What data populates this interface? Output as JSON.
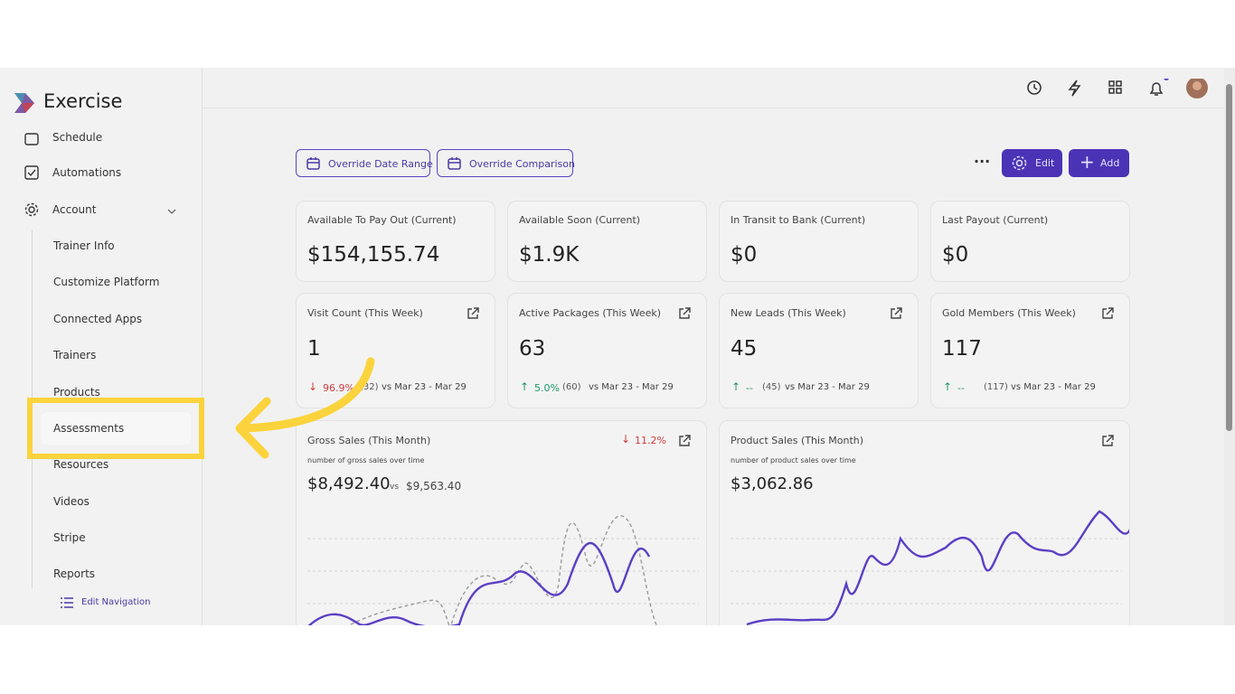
{
  "brand": "Exercise",
  "sidebar": {
    "items": [
      "Schedule",
      "Automations",
      "Account",
      "Trainer Info",
      "Customize Platform",
      "Connected Apps",
      "Trainers",
      "Products",
      "Assessments",
      "Resources",
      "Videos",
      "Stripe",
      "Reports"
    ],
    "edit_navigation": "Edit Navigation"
  },
  "toolbar": {
    "override_date_range": "Override Date Range",
    "override_comparison": "Override Comparison",
    "edit": "Edit",
    "add": "Add"
  },
  "stat_cards": [
    {
      "label": "Available To Pay Out (Current)",
      "value": "$154,155.74"
    },
    {
      "label": "Available Soon (Current)",
      "value": "$1.9K"
    },
    {
      "label": "In Transit to Bank (Current)",
      "value": "$0"
    },
    {
      "label": "Last Payout (Current)",
      "value": "$0"
    }
  ],
  "metric_cards": [
    {
      "label": "Visit Count (This Week)",
      "value": "1",
      "change": "96.9%",
      "previous": "(32)",
      "range": "vs Mar 23 - Mar 29"
    },
    {
      "label": "Active Packages (This Week)",
      "value": "63",
      "change": "5.0%",
      "previous": "(60)",
      "range": "vs Mar 23 - Mar 29"
    },
    {
      "label": "New Leads (This Week)",
      "value": "45",
      "change": "--",
      "previous": "(45)",
      "range": "vs Mar 23 - Mar 29"
    },
    {
      "label": "Gold Members (This Week)",
      "value": "117",
      "change": "--",
      "previous": "(117)",
      "range": "vs Mar 23 - Mar 29"
    }
  ],
  "chart_cards": [
    {
      "label": "Gross Sales (This Month)",
      "subtitle": "number of gross sales over time",
      "value": "$8,492.40",
      "vs": "vs",
      "comparison": "$9,563.40",
      "change": "11.2%"
    },
    {
      "label": "Product Sales (This Month)",
      "subtitle": "number of product sales over time",
      "value": "$3,062.86"
    }
  ]
}
